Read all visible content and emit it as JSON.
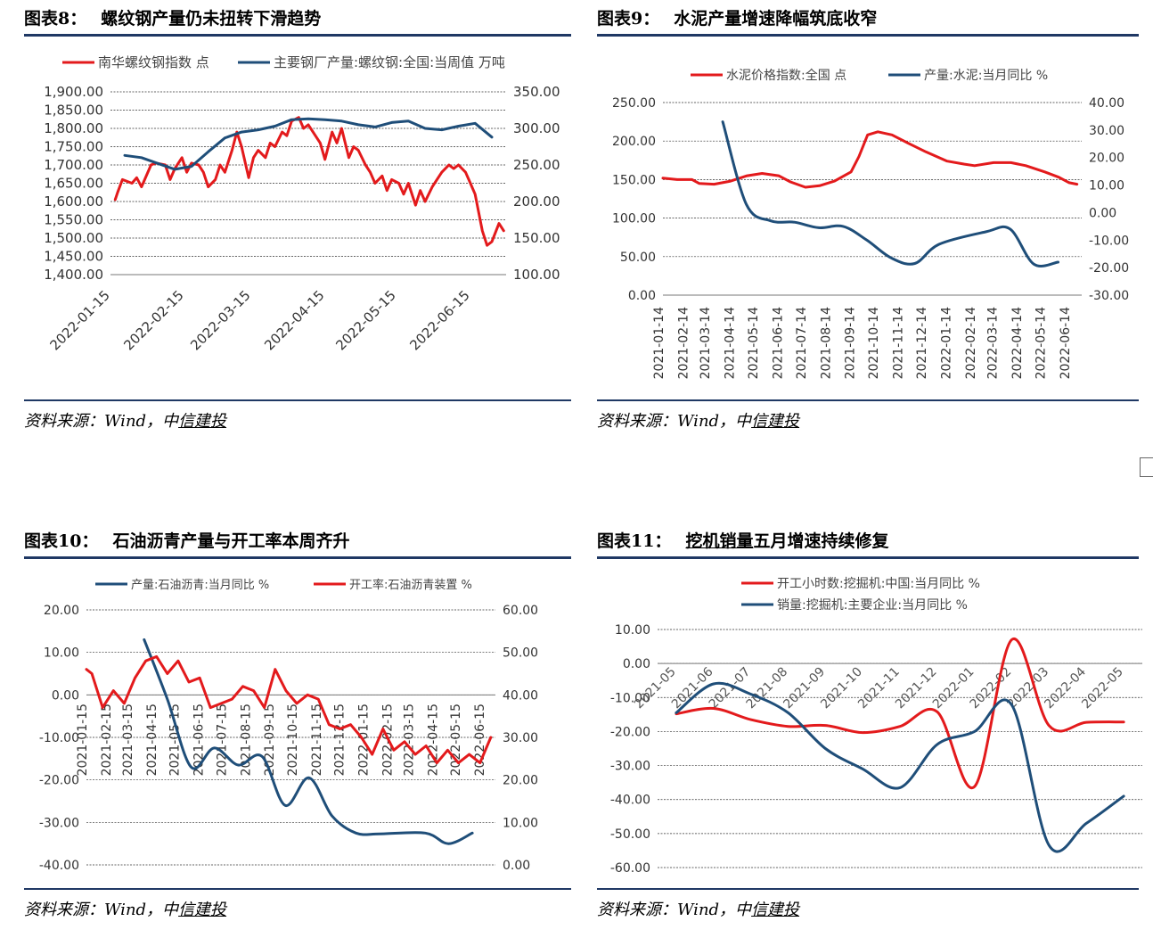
{
  "panels": [
    {
      "label": "图表8：",
      "title": "螺纹钢产量仍未扭转下滑趋势",
      "title_underlined": "",
      "source_prefix": "资料来源：Wind，中",
      "source_link": "信建投"
    },
    {
      "label": "图表9：",
      "title": "水泥产量增速降幅筑底收窄",
      "title_underlined": "",
      "source_prefix": "资料来源：Wind，中",
      "source_link": "信建投"
    },
    {
      "label": "图表10：",
      "title": "石油沥青产量与开工率本周齐升",
      "title_underlined": "",
      "source_prefix": "资料来源：Wind，中",
      "source_link": "信建投"
    },
    {
      "label": "图表11：",
      "title": "五月增速持续修复",
      "title_underlined": "挖机销量",
      "source_prefix": "资料来源：Wind，中",
      "source_link": "信建投"
    }
  ],
  "chart_data": [
    {
      "type": "line",
      "x_type": "date",
      "x_ticks": [
        "2022-01-15",
        "2022-02-15",
        "2022-03-15",
        "2022-04-15",
        "2022-05-15",
        "2022-06-15"
      ],
      "xlim": [
        "2022-01-15",
        "2022-06-30"
      ],
      "y_left": {
        "lim": [
          1400,
          1900
        ],
        "ticks": [
          "1,400.00",
          "1,450.00",
          "1,500.00",
          "1,550.00",
          "1,600.00",
          "1,650.00",
          "1,700.00",
          "1,750.00",
          "1,800.00",
          "1,850.00",
          "1,900.00"
        ]
      },
      "y_right": {
        "lim": [
          100,
          350
        ],
        "ticks": [
          "100.00",
          "150.00",
          "200.00",
          "250.00",
          "300.00",
          "350.00"
        ]
      },
      "grid": true,
      "legend": "top",
      "series": [
        {
          "name": "南华螺纹钢指数 点",
          "axis": "left",
          "color": "#e31a1c",
          "x": [
            "2022-01-17",
            "2022-01-18",
            "2022-01-20",
            "2022-01-24",
            "2022-01-26",
            "2022-01-28",
            "2022-02-01",
            "2022-02-03",
            "2022-02-07",
            "2022-02-09",
            "2022-02-11",
            "2022-02-14",
            "2022-02-16",
            "2022-02-18",
            "2022-02-21",
            "2022-02-23",
            "2022-02-25",
            "2022-02-28",
            "2022-03-02",
            "2022-03-04",
            "2022-03-07",
            "2022-03-09",
            "2022-03-11",
            "2022-03-14",
            "2022-03-16",
            "2022-03-18",
            "2022-03-21",
            "2022-03-23",
            "2022-03-25",
            "2022-03-28",
            "2022-03-30",
            "2022-04-01",
            "2022-04-04",
            "2022-04-06",
            "2022-04-08",
            "2022-04-11",
            "2022-04-13",
            "2022-04-15",
            "2022-04-18",
            "2022-04-20",
            "2022-04-22",
            "2022-04-25",
            "2022-04-27",
            "2022-04-29",
            "2022-05-02",
            "2022-05-04",
            "2022-05-06",
            "2022-05-09",
            "2022-05-11",
            "2022-05-13",
            "2022-05-16",
            "2022-05-18",
            "2022-05-20",
            "2022-05-23",
            "2022-05-25",
            "2022-05-27",
            "2022-05-30",
            "2022-06-01",
            "2022-06-03",
            "2022-06-06",
            "2022-06-08",
            "2022-06-10",
            "2022-06-13",
            "2022-06-15",
            "2022-06-17",
            "2022-06-20",
            "2022-06-22",
            "2022-06-24",
            "2022-06-27",
            "2022-06-29"
          ],
          "values": [
            1605,
            1625,
            1660,
            1650,
            1665,
            1640,
            1700,
            1705,
            1700,
            1660,
            1690,
            1720,
            1680,
            1705,
            1700,
            1680,
            1640,
            1660,
            1700,
            1680,
            1740,
            1790,
            1750,
            1665,
            1720,
            1740,
            1720,
            1760,
            1750,
            1790,
            1780,
            1820,
            1830,
            1800,
            1810,
            1780,
            1760,
            1715,
            1790,
            1760,
            1800,
            1720,
            1750,
            1740,
            1700,
            1680,
            1650,
            1670,
            1630,
            1660,
            1650,
            1620,
            1650,
            1590,
            1630,
            1600,
            1640,
            1660,
            1680,
            1700,
            1690,
            1700,
            1680,
            1650,
            1620,
            1520,
            1480,
            1490,
            1540,
            1520
          ]
        },
        {
          "name": "主要钢厂产量:螺纹钢:全国:当周值 万吨",
          "axis": "right",
          "color": "#1f4e79",
          "x": [
            "2022-01-21",
            "2022-01-28",
            "2022-02-04",
            "2022-02-11",
            "2022-02-18",
            "2022-02-25",
            "2022-03-04",
            "2022-03-11",
            "2022-03-18",
            "2022-03-25",
            "2022-04-01",
            "2022-04-08",
            "2022-04-15",
            "2022-04-22",
            "2022-04-29",
            "2022-05-06",
            "2022-05-13",
            "2022-05-20",
            "2022-05-27",
            "2022-06-03",
            "2022-06-10",
            "2022-06-17",
            "2022-06-24"
          ],
          "values": [
            263,
            260,
            252,
            244,
            248,
            268,
            287,
            295,
            298,
            303,
            312,
            313,
            312,
            310,
            305,
            302,
            308,
            310,
            300,
            298,
            303,
            307,
            288
          ]
        }
      ]
    },
    {
      "type": "line",
      "x_type": "date",
      "x_ticks": [
        "2021-01-14",
        "2021-02-14",
        "2021-03-14",
        "2021-04-14",
        "2021-05-14",
        "2021-06-14",
        "2021-07-14",
        "2021-08-14",
        "2021-09-14",
        "2021-10-14",
        "2021-11-14",
        "2021-12-14",
        "2022-01-14",
        "2022-02-14",
        "2022-03-14",
        "2022-04-14",
        "2022-05-14",
        "2022-06-14"
      ],
      "xlim": [
        "2021-01-14",
        "2022-06-30"
      ],
      "y_left": {
        "lim": [
          0,
          250
        ],
        "ticks": [
          "0.00",
          "50.00",
          "100.00",
          "150.00",
          "200.00",
          "250.00"
        ]
      },
      "y_right": {
        "lim": [
          -30,
          40
        ],
        "ticks": [
          "-30.00",
          "-20.00",
          "-10.00",
          "0.00",
          "10.00",
          "20.00",
          "30.00",
          "40.00"
        ]
      },
      "grid": true,
      "legend": "top",
      "series": [
        {
          "name": "水泥价格指数:全国 点",
          "axis": "left",
          "color": "#e31a1c",
          "x": [
            "2021-01-14",
            "2021-02-01",
            "2021-02-20",
            "2021-03-01",
            "2021-03-20",
            "2021-04-10",
            "2021-05-01",
            "2021-05-20",
            "2021-06-10",
            "2021-06-25",
            "2021-07-14",
            "2021-08-01",
            "2021-08-20",
            "2021-09-10",
            "2021-09-20",
            "2021-10-01",
            "2021-10-14",
            "2021-11-01",
            "2021-11-20",
            "2021-12-14",
            "2022-01-10",
            "2022-02-01",
            "2022-02-14",
            "2022-03-10",
            "2022-04-01",
            "2022-04-20",
            "2022-05-14",
            "2022-06-01",
            "2022-06-14",
            "2022-06-24"
          ],
          "values": [
            152,
            150,
            150,
            145,
            144,
            148,
            155,
            158,
            155,
            147,
            140,
            142,
            148,
            160,
            180,
            208,
            212,
            208,
            198,
            186,
            174,
            170,
            168,
            172,
            172,
            168,
            160,
            153,
            146,
            144
          ]
        },
        {
          "name": "产量:水泥:当月同比 %",
          "axis": "right",
          "color": "#1f4e79",
          "x": [
            "2021-03-31",
            "2021-04-30",
            "2021-05-31",
            "2021-06-30",
            "2021-07-31",
            "2021-08-31",
            "2021-09-30",
            "2021-10-31",
            "2021-11-30",
            "2021-12-31",
            "2022-02-28",
            "2022-03-31",
            "2022-04-30",
            "2022-05-31"
          ],
          "values": [
            33.0,
            3.0,
            -3.0,
            -3.5,
            -5.5,
            -5.0,
            -10.0,
            -16.5,
            -18.5,
            -11.5,
            -7.0,
            -6.0,
            -18.7,
            -18.0
          ]
        }
      ]
    },
    {
      "type": "line",
      "x_type": "date",
      "x_ticks": [
        "2021-01-15",
        "2021-02-15",
        "2021-03-15",
        "2021-04-15",
        "2021-05-15",
        "2021-06-15",
        "2021-07-15",
        "2021-08-15",
        "2021-09-15",
        "2021-10-15",
        "2021-11-15",
        "2021-12-15",
        "2022-01-15",
        "2022-02-15",
        "2022-03-15",
        "2022-04-15",
        "2022-05-15",
        "2022-06-15"
      ],
      "xlim": [
        "2021-01-15",
        "2022-06-30"
      ],
      "y_left": {
        "lim": [
          -40,
          20
        ],
        "ticks": [
          "-40.00",
          "-30.00",
          "-20.00",
          "-10.00",
          "0.00",
          "10.00",
          "20.00"
        ]
      },
      "y_right": {
        "lim": [
          0,
          60
        ],
        "ticks": [
          "0.00",
          "10.00",
          "20.00",
          "30.00",
          "40.00",
          "50.00",
          "60.00"
        ]
      },
      "grid": true,
      "legend": "top",
      "series": [
        {
          "name": "产量:石油沥青:当月同比 %",
          "axis": "left",
          "color": "#1f4e79",
          "x": [
            "2021-03-31",
            "2021-04-30",
            "2021-05-31",
            "2021-06-30",
            "2021-07-31",
            "2021-08-31",
            "2021-09-30",
            "2021-10-31",
            "2021-11-30",
            "2021-12-31",
            "2022-01-31",
            "2022-03-31",
            "2022-04-30",
            "2022-05-31"
          ],
          "values": [
            13.0,
            -1.0,
            -17.0,
            -12.5,
            -16.5,
            -14.5,
            -26.0,
            -19.5,
            -28.5,
            -32.5,
            -32.7,
            -32.5,
            -35.0,
            -32.5
          ]
        },
        {
          "name": "开工率:石油沥青装置 %",
          "axis": "right",
          "color": "#e31a1c",
          "x": [
            "2021-01-15",
            "2021-01-22",
            "2021-02-05",
            "2021-02-19",
            "2021-03-05",
            "2021-03-19",
            "2021-04-02",
            "2021-04-16",
            "2021-04-30",
            "2021-05-14",
            "2021-05-28",
            "2021-06-11",
            "2021-06-25",
            "2021-07-09",
            "2021-07-23",
            "2021-08-06",
            "2021-08-20",
            "2021-09-03",
            "2021-09-17",
            "2021-10-01",
            "2021-10-15",
            "2021-10-29",
            "2021-11-12",
            "2021-11-26",
            "2021-12-10",
            "2021-12-24",
            "2022-01-07",
            "2022-01-21",
            "2022-02-04",
            "2022-02-18",
            "2022-03-04",
            "2022-03-18",
            "2022-04-01",
            "2022-04-15",
            "2022-04-29",
            "2022-05-13",
            "2022-05-27",
            "2022-06-10",
            "2022-06-24"
          ],
          "values": [
            46,
            45,
            37,
            41,
            38,
            44,
            48,
            49,
            45,
            48,
            43,
            44,
            37,
            38,
            39,
            42,
            41,
            37,
            46,
            41,
            38,
            40,
            39,
            33,
            32,
            33,
            30,
            26,
            32,
            27,
            29,
            26,
            28,
            24,
            27,
            24,
            26,
            24,
            30
          ]
        }
      ]
    },
    {
      "type": "line",
      "x_type": "category",
      "categories": [
        "2021-05",
        "2021-06",
        "2021-07",
        "2021-08",
        "2021-09",
        "2021-10",
        "2021-11",
        "2021-12",
        "2022-01",
        "2022-02",
        "2022-03",
        "2022-04",
        "2022-05"
      ],
      "y_left": {
        "lim": [
          -60,
          10
        ],
        "ticks": [
          "-60.00",
          "-50.00",
          "-40.00",
          "-30.00",
          "-20.00",
          "-10.00",
          "0.00",
          "10.00"
        ]
      },
      "grid": true,
      "legend": "top",
      "series": [
        {
          "name": "开工小时数:挖掘机:中国:当月同比 %",
          "color": "#e31a1c",
          "values": [
            -14.8,
            -13.2,
            -16.5,
            -18.5,
            -18.2,
            -20.3,
            -18.5,
            -14.2,
            -36.2,
            7.0,
            -18.3,
            -17.3,
            -17.2
          ]
        },
        {
          "name": "销量:挖掘机:主要企业:当月同比 %",
          "color": "#1f4e79",
          "values": [
            -14.5,
            -6.0,
            -9.0,
            -14.5,
            -25.0,
            -31.0,
            -36.5,
            -23.8,
            -20.0,
            -12.2,
            -53.5,
            -47.0,
            -39.0
          ]
        }
      ]
    }
  ]
}
